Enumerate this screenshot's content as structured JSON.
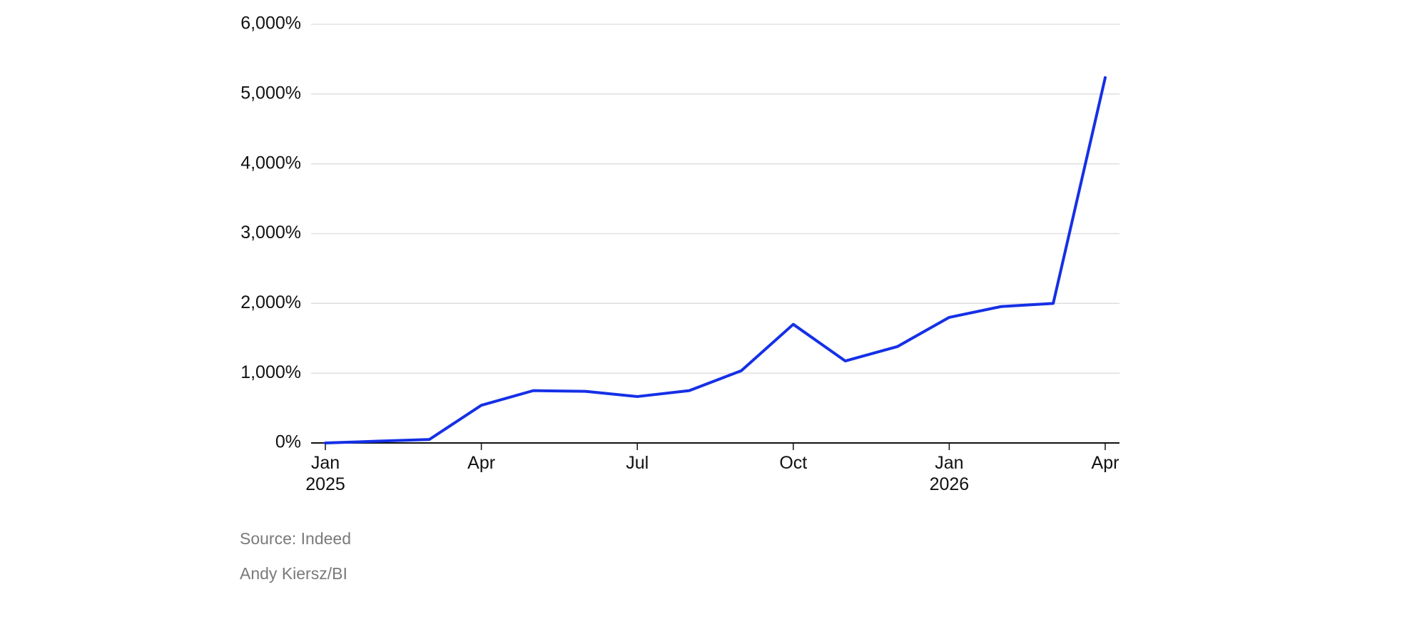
{
  "chart_data": {
    "type": "line",
    "categories": [
      "Jan 2025",
      null,
      null,
      "Apr",
      null,
      null,
      "Jul",
      null,
      null,
      "Oct",
      null,
      null,
      "Jan 2026",
      null,
      null,
      "Apr"
    ],
    "series": [
      {
        "color": "#1530e6",
        "values": [
          0,
          25,
          50,
          540,
          750,
          740,
          665,
          750,
          1035,
          1700,
          1175,
          1380,
          1800,
          1955,
          2000,
          5235
        ]
      }
    ],
    "ylim": [
      0,
      6000
    ],
    "yticks": [
      {
        "value": 0,
        "label": "0%"
      },
      {
        "value": 1000,
        "label": "1,000%"
      },
      {
        "value": 2000,
        "label": "2,000%"
      },
      {
        "value": 3000,
        "label": "3,000%"
      },
      {
        "value": 4000,
        "label": "4,000%"
      },
      {
        "value": 5000,
        "label": "5,000%"
      },
      {
        "value": 6000,
        "label": "6,000%"
      }
    ],
    "grid": true,
    "source": "Source: Indeed",
    "credit": "Andy Kiersz/BI"
  }
}
